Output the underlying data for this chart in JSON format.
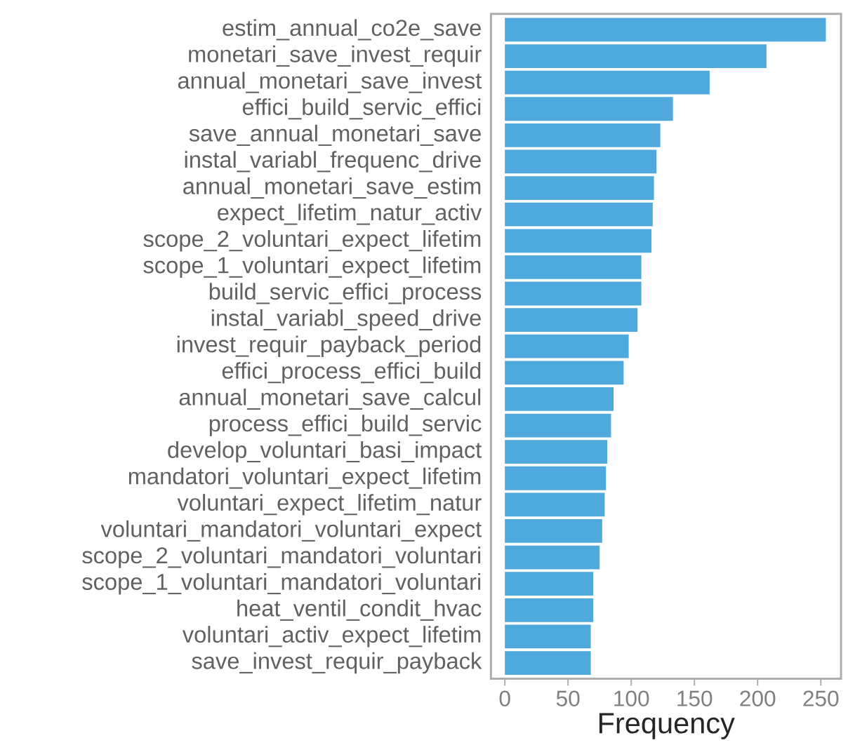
{
  "chart_data": {
    "type": "bar",
    "orientation": "horizontal",
    "xlabel": "Frequency",
    "categories": [
      "estim_annual_co2e_save",
      "monetari_save_invest_requir",
      "annual_monetari_save_invest",
      "effici_build_servic_effici",
      "save_annual_monetari_save",
      "instal_variabl_frequenc_drive",
      "annual_monetari_save_estim",
      "expect_lifetim_natur_activ",
      "scope_2_voluntari_expect_lifetim",
      "scope_1_voluntari_expect_lifetim",
      "build_servic_effici_process",
      "instal_variabl_speed_drive",
      "invest_requir_payback_period",
      "effici_process_effici_build",
      "annual_monetari_save_calcul",
      "process_effici_build_servic",
      "develop_voluntari_basi_impact",
      "mandatori_voluntari_expect_lifetim",
      "voluntari_expect_lifetim_natur",
      "voluntari_mandatori_voluntari_expect",
      "scope_2_voluntari_mandatori_voluntari",
      "scope_1_voluntari_mandatori_voluntari",
      "heat_ventil_condit_hvac",
      "voluntari_activ_expect_lifetim",
      "save_invest_requir_payback"
    ],
    "values": [
      254,
      207,
      162,
      133,
      123,
      120,
      118,
      117,
      116,
      108,
      108,
      105,
      98,
      94,
      86,
      84,
      81,
      80,
      79,
      77,
      75,
      70,
      70,
      68,
      68
    ],
    "color": "#4fa9dc",
    "xlim": [
      -11,
      266
    ],
    "xticks": [
      0,
      50,
      100,
      150,
      200,
      250
    ]
  }
}
